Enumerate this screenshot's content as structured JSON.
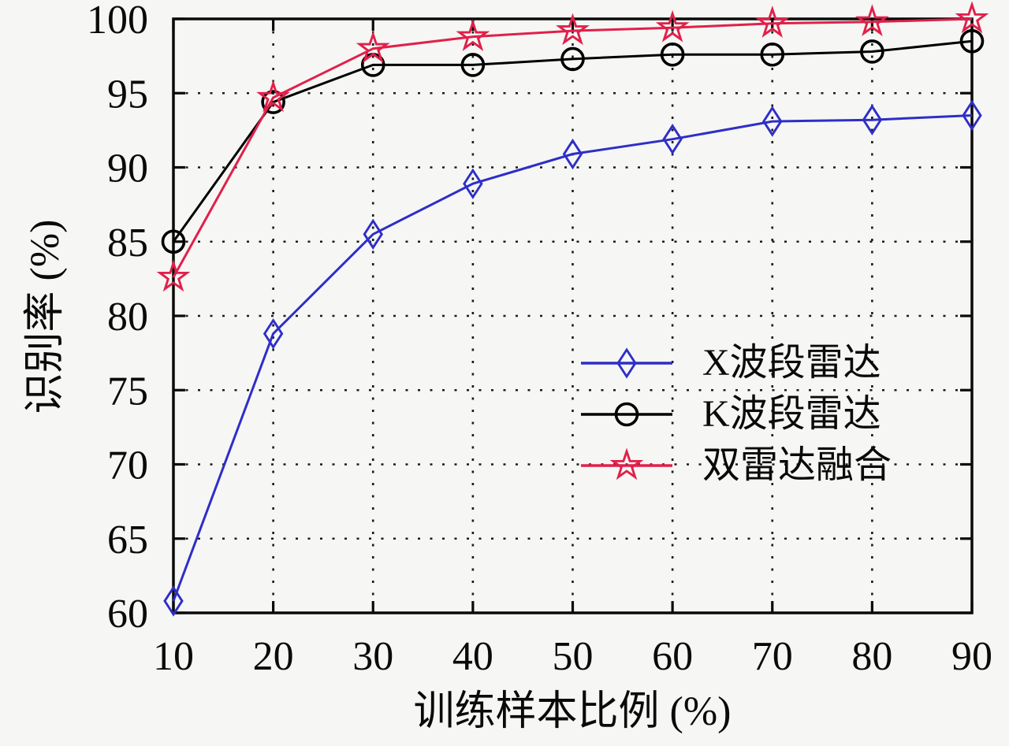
{
  "figure": {
    "background": "#f6f6f4",
    "axis_color": "#0a0a0a",
    "grid_color": "#1a1a1a"
  },
  "chart_data": {
    "type": "line",
    "title": "",
    "xlabel": "训练样本比例 (%)",
    "ylabel": "识别率 (%)",
    "xlim": [
      10,
      90
    ],
    "ylim": [
      60,
      100
    ],
    "xticks": [
      10,
      20,
      30,
      40,
      50,
      60,
      70,
      80,
      90
    ],
    "yticks": [
      60,
      65,
      70,
      75,
      80,
      85,
      90,
      95,
      100
    ],
    "grid": "dotted",
    "legend_position": "inside-right-middle",
    "x": [
      10,
      20,
      30,
      40,
      50,
      60,
      70,
      80,
      90
    ],
    "series": [
      {
        "name": "X波段雷达",
        "color": "#2e2ec8",
        "marker": "diamond",
        "values": [
          60.8,
          78.8,
          85.5,
          88.9,
          90.9,
          91.9,
          93.1,
          93.2,
          93.5
        ]
      },
      {
        "name": "K波段雷达",
        "color": "#000000",
        "marker": "circle",
        "values": [
          85.0,
          94.4,
          96.9,
          96.9,
          97.3,
          97.6,
          97.6,
          97.8,
          98.5
        ]
      },
      {
        "name": "双雷达融合",
        "color": "#e0204a",
        "marker": "star",
        "values": [
          82.6,
          94.7,
          98.0,
          98.8,
          99.2,
          99.4,
          99.7,
          99.8,
          100.0
        ]
      }
    ]
  }
}
